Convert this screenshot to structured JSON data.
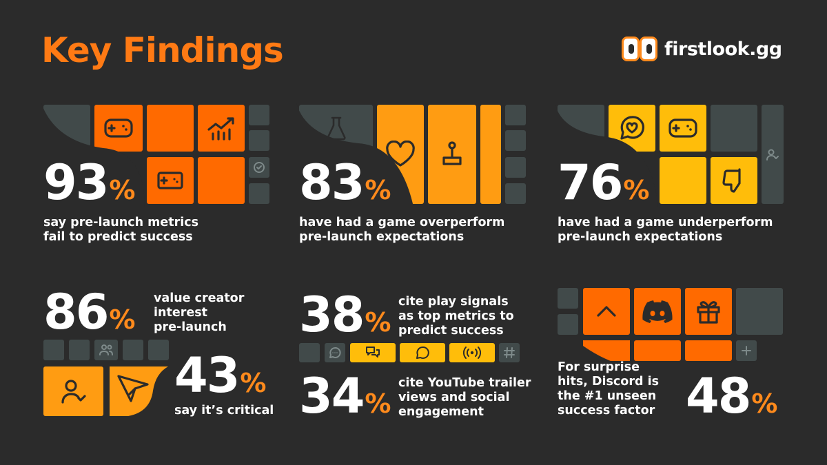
{
  "header": {
    "title": "Key Findings",
    "brand": "firstlook.gg"
  },
  "colors": {
    "background": "#2b2b2b",
    "accent": "#ff7a14",
    "orange": "#ff6a00",
    "amber": "#ff9c12",
    "yellow": "#ffbd0a",
    "tile_grey": "#414a4a"
  },
  "findings": [
    {
      "value": "93",
      "unit": "%",
      "line1": "say pre-launch metrics",
      "line2": "fail to predict success"
    },
    {
      "value": "83",
      "unit": "%",
      "line1": "have had a game overperform",
      "line2": "pre-launch expectations"
    },
    {
      "value": "76",
      "unit": "%",
      "line1": "have had a game underperform",
      "line2": "pre-launch expectations"
    },
    {
      "value": "86",
      "unit": "%",
      "line1": "value creator",
      "line2": "interest",
      "line3": "pre-launch"
    },
    {
      "value": "43",
      "unit": "%",
      "line1": "say it’s critical"
    },
    {
      "value": "38",
      "unit": "%",
      "line1": "cite play signals",
      "line2": "as top metrics to",
      "line3": "predict success"
    },
    {
      "value": "34",
      "unit": "%",
      "line1": "cite YouTube trailer",
      "line2": "views and social",
      "line3": "engagement"
    },
    {
      "value": "48",
      "unit": "%",
      "line1": "For surprise",
      "line2": "hits, Discord is",
      "line3": "the #1 unseen",
      "line4": "success factor"
    }
  ],
  "icons": [
    "gamepad-icon",
    "chart-growth-icon",
    "check-circle-icon",
    "flask-icon",
    "heart-icon",
    "joystick-icon",
    "heart-chat-icon",
    "thumbs-down-icon",
    "user-check-icon",
    "users-icon",
    "send-icon",
    "chat-icon",
    "chat-bubbles-icon",
    "broadcast-icon",
    "hash-icon",
    "chevron-up-icon",
    "discord-icon",
    "gift-icon",
    "plus-icon"
  ]
}
